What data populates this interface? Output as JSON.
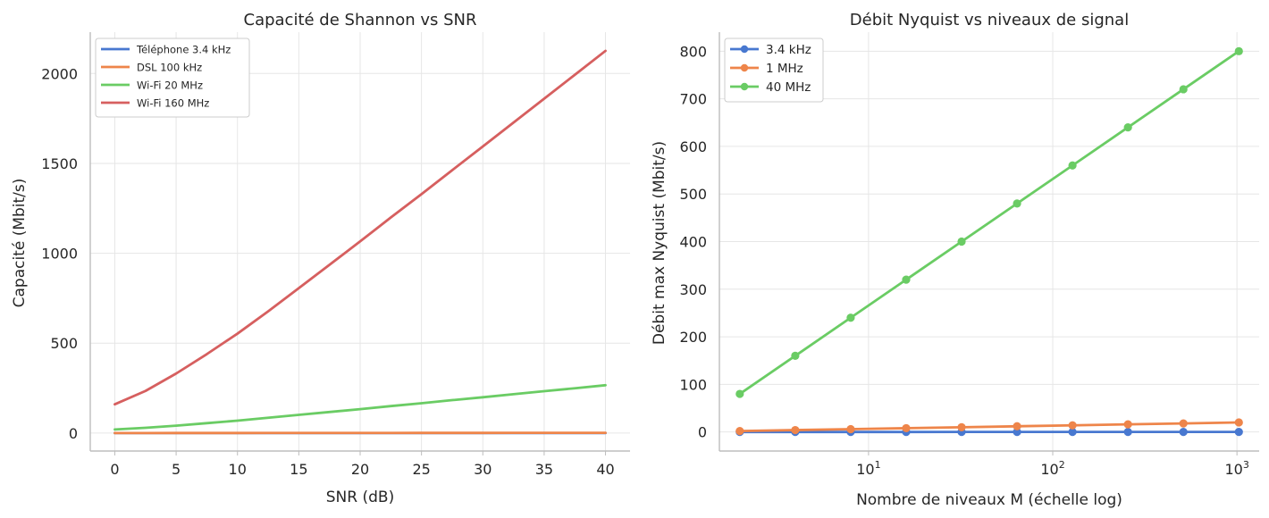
{
  "chart_data": [
    {
      "type": "line",
      "title": "Capacité de Shannon vs SNR",
      "xlabel": "SNR (dB)",
      "ylabel": "Capacité (Mbit/s)",
      "xlim": [
        -2,
        42
      ],
      "ylim": [
        -100,
        2230
      ],
      "xticks": [
        0,
        5,
        10,
        15,
        20,
        25,
        30,
        35,
        40
      ],
      "yticks": [
        0,
        500,
        1000,
        1500,
        2000
      ],
      "grid": true,
      "legend_position": "top-left",
      "x": [
        0,
        2.5,
        5,
        7.5,
        10,
        12.5,
        15,
        17.5,
        20,
        22.5,
        25,
        27.5,
        30,
        32.5,
        35,
        37.5,
        40
      ],
      "series": [
        {
          "name": "Téléphone 3.4 kHz",
          "color": "#4878d0",
          "values": [
            0,
            0.01,
            0.01,
            0.02,
            0.02,
            0.03,
            0.03,
            0.04,
            0.04,
            0.05,
            0.06,
            0.06,
            0.07,
            0.07,
            0.08,
            0.08,
            0.09
          ]
        },
        {
          "name": "DSL 100 kHz",
          "color": "#ee854a",
          "values": [
            0.1,
            0.15,
            0.21,
            0.28,
            0.35,
            0.43,
            0.5,
            0.59,
            0.67,
            0.75,
            0.83,
            0.92,
            1.0,
            1.08,
            1.16,
            1.25,
            1.33
          ]
        },
        {
          "name": "Wi-Fi 20 MHz",
          "color": "#6acc64",
          "values": [
            20,
            29,
            41,
            55,
            69,
            85,
            101,
            117,
            133,
            150,
            166,
            183,
            199,
            216,
            233,
            249,
            266
          ]
        },
        {
          "name": "Wi-Fi 160 MHz",
          "color": "#d65f5f",
          "values": [
            160,
            234,
            331,
            439,
            553,
            677,
            806,
            936,
            1066,
            1199,
            1329,
            1462,
            1594,
            1727,
            1860,
            1993,
            2126
          ]
        }
      ]
    },
    {
      "type": "line",
      "title": "Débit Nyquist vs niveaux de signal",
      "xlabel": "Nombre de niveaux M (échelle log)",
      "ylabel": "Débit max Nyquist (Mbit/s)",
      "xscale": "log",
      "xlim": [
        1.55,
        1320
      ],
      "ylim": [
        -40,
        840
      ],
      "xticks": [
        10,
        100,
        1000
      ],
      "xtick_labels": [
        {
          "base": "10",
          "exp": "1"
        },
        {
          "base": "10",
          "exp": "2"
        },
        {
          "base": "10",
          "exp": "3"
        }
      ],
      "yticks": [
        0,
        100,
        200,
        300,
        400,
        500,
        600,
        700,
        800
      ],
      "grid": true,
      "legend_position": "top-left",
      "x": [
        2,
        4,
        8,
        16,
        32,
        64,
        128,
        256,
        512,
        1024
      ],
      "series": [
        {
          "name": "3.4 kHz",
          "color": "#4878d0",
          "values": [
            0.0068,
            0.0136,
            0.0204,
            0.0272,
            0.034,
            0.0408,
            0.0476,
            0.0544,
            0.0612,
            0.068
          ]
        },
        {
          "name": "1 MHz",
          "color": "#ee854a",
          "values": [
            2,
            4,
            6,
            8,
            10,
            12,
            14,
            16,
            18,
            20
          ]
        },
        {
          "name": "40 MHz",
          "color": "#6acc64",
          "values": [
            80,
            160,
            240,
            320,
            400,
            480,
            560,
            640,
            720,
            800
          ]
        }
      ]
    }
  ]
}
